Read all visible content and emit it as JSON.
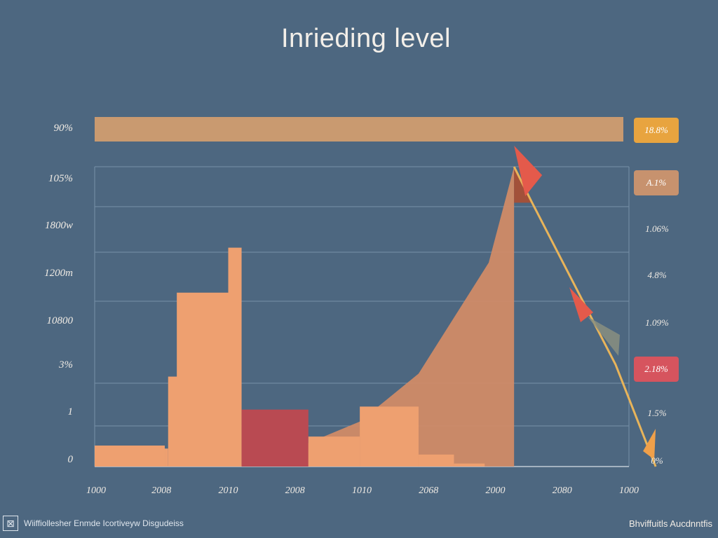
{
  "chart_data": {
    "type": "bar",
    "title": "Inrieding level",
    "banner": {
      "value": 100,
      "label": "90%"
    },
    "y_left_ticks": [
      "90%",
      "105%",
      "1800w",
      "1200m",
      "10800",
      "3%",
      "1",
      "0"
    ],
    "y_right_ticks": [
      "18.8%",
      "A.1%",
      "1.06%",
      "4.8%",
      "1.09%",
      "2.18%",
      "1.5%",
      "0%"
    ],
    "y_right_highlights": [
      {
        "label": "18.8%",
        "color": "#e8a43f"
      },
      {
        "label": "A.1%",
        "color": "#c7926e"
      },
      {
        "label": "2.18%",
        "color": "#d6545e"
      }
    ],
    "x_ticks": [
      "1000",
      "2008",
      "2010",
      "2008",
      "1010",
      "2068",
      "2000",
      "2080",
      "1000"
    ],
    "ylim": [
      0,
      100
    ],
    "bars": [
      {
        "name": "bar-1",
        "start": 0,
        "end": 1.05,
        "value": 7
      },
      {
        "name": "bar-2",
        "start": 1.05,
        "end": 1.1,
        "value": 6
      },
      {
        "name": "bar-3",
        "start": 1.1,
        "end": 1.92,
        "value": 30
      },
      {
        "name": "bar-4",
        "start": 1.23,
        "end": 2.0,
        "value": 58
      },
      {
        "name": "bar-5",
        "start": 2.0,
        "end": 2.2,
        "value": 73
      },
      {
        "name": "bar-6",
        "start": 2.2,
        "end": 3.2,
        "value": 19,
        "color": "#b94a52"
      },
      {
        "name": "bar-7",
        "start": 3.2,
        "end": 3.97,
        "value": 10
      },
      {
        "name": "bar-8",
        "start": 3.97,
        "end": 4.85,
        "value": 20
      },
      {
        "name": "bar-9",
        "start": 4.85,
        "end": 5.38,
        "value": 4
      },
      {
        "name": "bar-10",
        "start": 5.38,
        "end": 5.84,
        "value": 1
      }
    ],
    "area": {
      "x": [
        2.2,
        3.0,
        3.97,
        4.85,
        5.9,
        6.28
      ],
      "y": [
        0,
        6,
        15,
        31,
        68,
        100
      ]
    },
    "trend_line": {
      "x": [
        6.28,
        6.55,
        7.8,
        8.4
      ],
      "y": [
        100,
        88,
        34,
        0
      ]
    },
    "colors": {
      "background": "#4d6780",
      "bar": "#eea070",
      "area": "#d48c66",
      "area_dark": "#a2513a",
      "banner": "#c99a70",
      "grid": "#7890a8",
      "line": "#e8b45a",
      "arrow": "#e45a4b"
    }
  },
  "footer": {
    "left_text": "Wiiffiollesher Enmde Icortiveyw Disgudeiss",
    "right_text": "Bhviffuitls Aucdnntfis"
  }
}
